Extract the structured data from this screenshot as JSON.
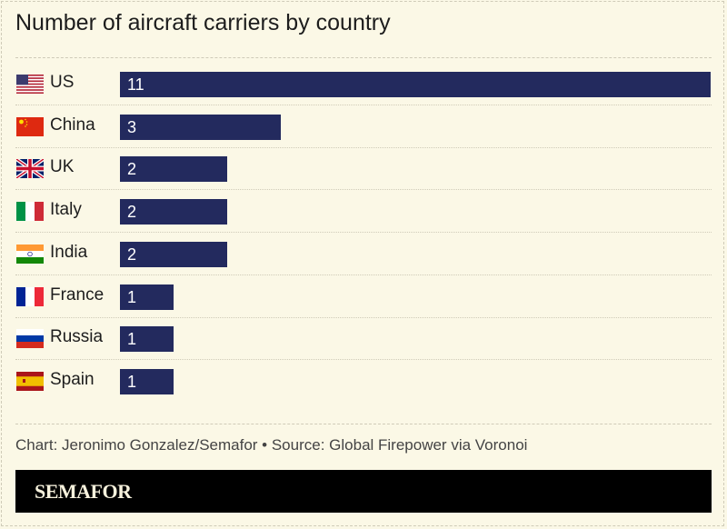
{
  "chart_data": {
    "type": "bar",
    "orientation": "horizontal",
    "title": "Number of aircraft carriers by country",
    "categories": [
      "US",
      "China",
      "UK",
      "Italy",
      "India",
      "France",
      "Russia",
      "Spain"
    ],
    "values": [
      11,
      3,
      2,
      2,
      2,
      1,
      1,
      1
    ],
    "flag_icons": [
      "us-flag-icon",
      "china-flag-icon",
      "uk-flag-icon",
      "italy-flag-icon",
      "india-flag-icon",
      "france-flag-icon",
      "russia-flag-icon",
      "spain-flag-icon"
    ],
    "xlim": [
      0,
      11
    ],
    "bar_color": "#232a5e",
    "data_labels": true,
    "grid": false
  },
  "footer": {
    "credit": "Chart: Jeronimo Gonzalez/Semafor • Source: Global Firepower via Voronoi"
  },
  "brand": {
    "logo": "SEMAFOR"
  },
  "colors": {
    "background": "#fbf8e6",
    "bar": "#232a5e"
  }
}
